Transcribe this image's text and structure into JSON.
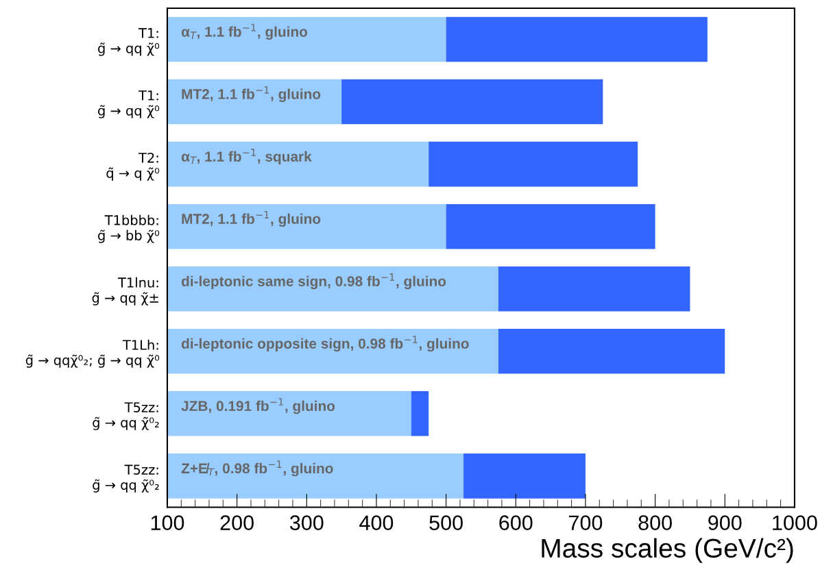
{
  "chart_data": {
    "type": "bar",
    "orientation": "horizontal",
    "categories": [
      "T1:\ng̃ → qq χ̃⁰",
      "T1:\ng̃ → qq χ̃⁰",
      "T2:\nq̃ → q χ̃⁰",
      "T1bbbb:\ng̃ → bb χ̃⁰",
      "T1lnu:\ng̃ → qq χ̃±",
      "T1Lh:\ng̃ → qqχ̃⁰₂; g̃ → qq χ̃⁰",
      "T5zz:\ng̃ → qq χ̃⁰₂",
      "T5zz:\ng̃ → qq χ̃⁰₂"
    ],
    "series": [
      {
        "color": "#99ccff",
        "base": [
          100,
          100,
          100,
          100,
          100,
          100,
          100,
          100
        ],
        "values": [
          400,
          250,
          375,
          400,
          475,
          475,
          350,
          425
        ]
      },
      {
        "color": "#3366ff",
        "base": [
          500,
          350,
          475,
          500,
          575,
          575,
          450,
          525
        ],
        "values": [
          375,
          375,
          300,
          300,
          275,
          325,
          25,
          175
        ]
      }
    ],
    "annotations": [
      "α$_{T}$, 1.1 fb$^{−1}$, gluino",
      "MT2, 1.1 fb$^{−1}$, gluino",
      "α$_{T}$, 1.1 fb$^{−1}$, squark",
      "MT2, 1.1 fb$^{−1}$, gluino",
      "di-leptonic same sign, 0.98 fb$^{−1}$, gluino",
      "di-leptonic opposite sign, 0.98 fb$^{−1}$, gluino",
      "JZB, 0.191 fb$^{−1}$, gluino",
      "Z+E̸$_{T}$, 0.98 fb$^{−1}$, gluino"
    ],
    "xlabel": "Mass scales (GeV/c²)",
    "xlim": [
      100,
      1000
    ],
    "xticks": [
      100,
      {
        "value": 120,
        "label": null
      },
      {
        "value": 140,
        "label": null
      },
      {
        "value": 160,
        "label": null
      },
      {
        "value": 180,
        "label": null
      },
      200,
      {
        "value": 220,
        "label": null
      },
      {
        "value": 240,
        "label": null
      },
      {
        "value": 260,
        "label": null
      },
      {
        "value": 280,
        "label": null
      },
      300,
      {
        "value": 320,
        "label": null
      },
      {
        "value": 340,
        "label": null
      },
      {
        "value": 360,
        "label": null
      },
      {
        "value": 380,
        "label": null
      },
      400,
      {
        "value": 420,
        "label": null
      },
      {
        "value": 440,
        "label": null
      },
      {
        "value": 460,
        "label": null
      },
      {
        "value": 480,
        "label": null
      },
      500,
      {
        "value": 520,
        "label": null
      },
      {
        "value": 540,
        "label": null
      },
      {
        "value": 560,
        "label": null
      },
      {
        "value": 580,
        "label": null
      },
      600,
      {
        "value": 620,
        "label": null
      },
      {
        "value": 640,
        "label": null
      },
      {
        "value": 660,
        "label": null
      },
      {
        "value": 680,
        "label": null
      },
      700,
      {
        "value": 720,
        "label": null
      },
      {
        "value": 740,
        "label": null
      },
      {
        "value": 760,
        "label": null
      },
      {
        "value": 780,
        "label": null
      },
      800,
      {
        "value": 820,
        "label": null
      },
      {
        "value": 840,
        "label": null
      },
      {
        "value": 860,
        "label": null
      },
      {
        "value": 880,
        "label": null
      },
      900,
      {
        "value": 920,
        "label": null
      },
      {
        "value": 940,
        "label": null
      },
      {
        "value": 960,
        "label": null
      },
      {
        "value": 980,
        "label": null
      },
      1000
    ],
    "grid": false,
    "legend": false
  }
}
